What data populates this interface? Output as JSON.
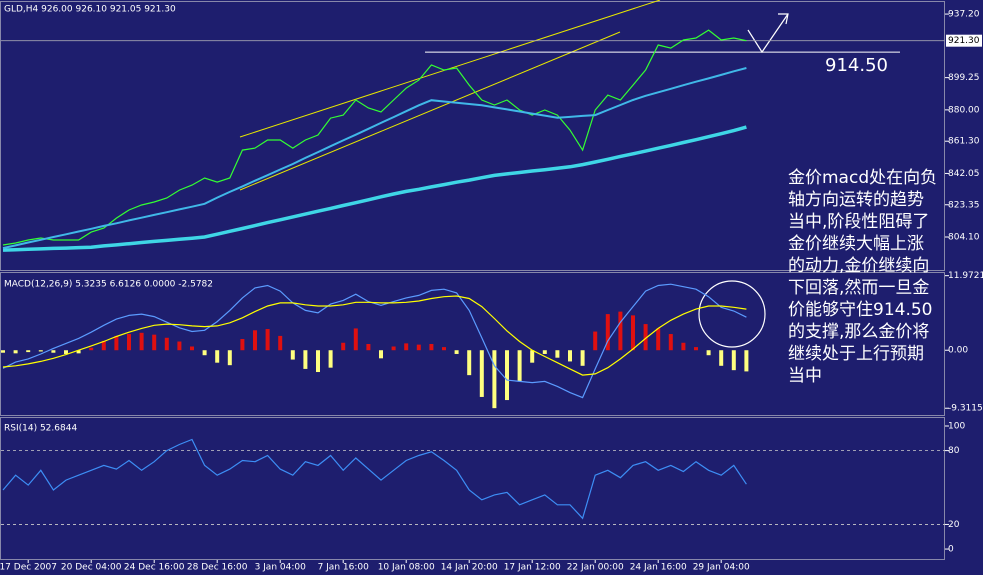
{
  "chart_data": [
    {
      "type": "line",
      "title": "GLD,H4  926.00 926.10 921.05 921.30",
      "categories": [
        null,
        null,
        "17 Dec 2007",
        null,
        null,
        null,
        null,
        "20 Dec 04:00",
        null,
        null,
        null,
        null,
        "24 Dec 16:00",
        null,
        null,
        null,
        null,
        "28 Dec 16:00",
        null,
        null,
        null,
        null,
        "3 Jan 04:00",
        null,
        null,
        null,
        null,
        "7 Jan 16:00",
        null,
        null,
        null,
        null,
        "10 Jan 08:00",
        null,
        null,
        null,
        null,
        "14 Jan 20:00",
        null,
        null,
        null,
        null,
        "17 Jan 12:00",
        null,
        null,
        null,
        null,
        "22 Jan 00:00",
        null,
        null,
        null,
        null,
        "24 Jan 16:00",
        null,
        null,
        null,
        null,
        "29 Jan 04:00",
        null,
        null
      ],
      "series": [
        {
          "color": "#33ff33",
          "width": 1.2,
          "values": [
            799.3,
            800.5,
            802.3,
            803.5,
            802.3,
            802.3,
            802.3,
            807.0,
            809.4,
            815.4,
            820.2,
            823.2,
            825.0,
            827.4,
            832.1,
            835.1,
            839.3,
            836.9,
            839.3,
            856.0,
            857.2,
            862.0,
            862.0,
            857.2,
            862.0,
            865.0,
            875.1,
            876.9,
            885.9,
            881.1,
            878.7,
            885.9,
            893.0,
            897.8,
            906.8,
            903.8,
            905.0,
            894.8,
            885.9,
            882.9,
            885.9,
            879.9,
            876.9,
            879.9,
            876.9,
            867.9,
            856.0,
            879.9,
            888.8,
            885.9,
            894.8,
            903.8,
            918.7,
            916.9,
            921.7,
            922.9,
            927.6,
            921.7,
            922.9,
            921.3
          ]
        },
        {
          "color": "#3fd6e6",
          "width": 3.5,
          "values": [
            796.3,
            796.5,
            796.8,
            797.0,
            797.3,
            797.5,
            797.8,
            798.0,
            798.8,
            799.4,
            800.1,
            800.8,
            801.5,
            802.1,
            802.8,
            803.4,
            804.1,
            805.8,
            807.5,
            809.2,
            810.9,
            812.7,
            814.4,
            816.1,
            817.8,
            819.5,
            821.2,
            822.9,
            824.6,
            826.3,
            828.1,
            829.8,
            831.3,
            832.6,
            834.0,
            835.4,
            836.8,
            838.1,
            839.5,
            840.9,
            841.8,
            842.6,
            843.5,
            844.3,
            845.2,
            846.0,
            847.3,
            848.9,
            850.5,
            852.2,
            853.8,
            855.4,
            857.1,
            858.8,
            860.5,
            862.2,
            864.0,
            865.8,
            867.6,
            869.7
          ]
        },
        {
          "color": "#40b8e8",
          "width": 2,
          "values": [
            797.5,
            799.1,
            800.8,
            802.4,
            804.1,
            805.7,
            807.4,
            809.0,
            810.7,
            812.3,
            814.0,
            815.6,
            817.3,
            818.9,
            820.6,
            822.2,
            823.9,
            827.6,
            831.0,
            834.3,
            837.7,
            841.0,
            844.4,
            847.7,
            851.3,
            854.8,
            858.3,
            861.8,
            865.2,
            868.7,
            872.2,
            875.7,
            879.2,
            882.7,
            885.8,
            885.0,
            884.2,
            883.5,
            882.7,
            881.5,
            880.3,
            879.0,
            877.8,
            876.6,
            875.3,
            875.8,
            876.4,
            876.9,
            879.9,
            882.9,
            885.9,
            888.4,
            890.5,
            892.6,
            894.7,
            896.8,
            898.8,
            900.9,
            903.0,
            905.0
          ]
        }
      ],
      "ylim": [
        784.4,
        944.4
      ],
      "yticks": [
        {
          "value": 937.2,
          "label": "937.20"
        },
        899.25,
        {
          "value": 880,
          "label": "880.00"
        },
        {
          "value": 861.3,
          "label": "861.30"
        },
        842.05,
        823.35,
        {
          "value": 804.1,
          "label": "804.10"
        }
      ],
      "price_label": {
        "value": 921.3,
        "label": "921.30"
      },
      "level": {
        "value": 914.5,
        "label": "914.50"
      },
      "note_lines": [
        "金价macd处在向负",
        "轴方向运转的趋势",
        "当中,阶段性阻碍了",
        "金价继续大幅上涨",
        "的动力,金价继续向",
        "下回落,然而一旦金",
        "价能够守住914.50",
        "的支撑,那么金价将",
        "继续处于上行预期",
        "当中"
      ]
    },
    {
      "type": "bar",
      "title": "MACD(12,26,9) 5.3235 6.6126 0.0000 -2.5782",
      "series": [
        {
          "type": "bar",
          "color": "#e01010",
          "negative_color": "#ffff80",
          "values": [
            -0.4,
            -0.5,
            -0.3,
            -0.2,
            -0.4,
            -0.6,
            -0.5,
            0.4,
            1.5,
            2.3,
            2.6,
            2.8,
            2.5,
            2.0,
            1.4,
            0.6,
            -0.8,
            -2.0,
            -2.4,
            1.8,
            3.2,
            3.4,
            2.3,
            -1.5,
            -3.0,
            -3.5,
            -2.8,
            1.2,
            3.5,
            1.0,
            -1.3,
            0.6,
            1.1,
            0.9,
            1.0,
            0.5,
            -0.6,
            -4.0,
            -7.5,
            -9.3,
            -8.0,
            -5.0,
            -2.0,
            -0.6,
            -1.2,
            -1.8,
            -2.5,
            3.0,
            5.8,
            6.2,
            5.6,
            4.2,
            3.5,
            2.6,
            1.2,
            0.5,
            -0.8,
            -2.5,
            -3.2,
            -3.4
          ]
        },
        {
          "type": "line",
          "color": "#5b9bff",
          "values": [
            -2.9,
            -1.9,
            -1.4,
            -0.6,
            0.3,
            1.1,
            1.9,
            2.9,
            4.0,
            5.0,
            5.6,
            5.8,
            5.4,
            4.5,
            3.6,
            3.0,
            3.2,
            4.6,
            6.4,
            8.4,
            10.0,
            10.4,
            9.5,
            7.6,
            6.4,
            6.0,
            7.4,
            8.0,
            9.0,
            7.8,
            7.2,
            7.8,
            8.4,
            8.8,
            9.6,
            9.8,
            9.2,
            6.4,
            2.0,
            -2.5,
            -4.8,
            -5.0,
            -5.2,
            -5.0,
            -5.8,
            -6.8,
            -7.6,
            -3.0,
            1.5,
            4.5,
            7.0,
            9.5,
            10.4,
            10.6,
            10.2,
            9.8,
            8.6,
            6.9,
            6.3,
            5.3
          ]
        },
        {
          "type": "line",
          "color": "#ffff00",
          "values": [
            -2.7,
            -2.5,
            -2.2,
            -1.8,
            -1.3,
            -0.7,
            0.0,
            0.7,
            1.4,
            2.2,
            2.9,
            3.5,
            4.0,
            4.2,
            4.1,
            3.9,
            3.8,
            3.9,
            4.4,
            5.2,
            6.2,
            7.1,
            7.6,
            7.6,
            7.3,
            7.1,
            7.1,
            7.3,
            7.7,
            7.7,
            7.6,
            7.6,
            7.7,
            7.9,
            8.3,
            8.6,
            8.7,
            8.3,
            7.0,
            5.1,
            3.1,
            1.4,
            0.0,
            -1.0,
            -2.0,
            -3.0,
            -4.0,
            -3.8,
            -2.8,
            -1.4,
            0.2,
            1.9,
            3.5,
            4.8,
            5.8,
            6.6,
            7.1,
            7.1,
            6.9,
            6.6
          ]
        }
      ],
      "ylim": [
        -10.4,
        12.4
      ],
      "yticks": [
        11.9721,
        {
          "value": 0,
          "label": "0.00"
        },
        -9.3115
      ]
    },
    {
      "type": "line",
      "title": "RSI(14) 52.6844",
      "series": [
        {
          "color": "#3d8ef5",
          "width": 1.2,
          "values": [
            48,
            60,
            52,
            64,
            48,
            56,
            60,
            64,
            68,
            65,
            72,
            64,
            71,
            80,
            85,
            89,
            68,
            60,
            65,
            72,
            71,
            76,
            65,
            60,
            71,
            68,
            76,
            64,
            74,
            65,
            56,
            64,
            72,
            76,
            79,
            72,
            64,
            48,
            40,
            44,
            46,
            36,
            40,
            44,
            36,
            36,
            25,
            60,
            64,
            58,
            68,
            71,
            64,
            68,
            63,
            71,
            64,
            60,
            68,
            52.7
          ]
        }
      ],
      "ylim": [
        -8.9,
        106.5
      ],
      "yticks": [
        100,
        80,
        20,
        0
      ],
      "levels": [
        80,
        20
      ]
    }
  ]
}
